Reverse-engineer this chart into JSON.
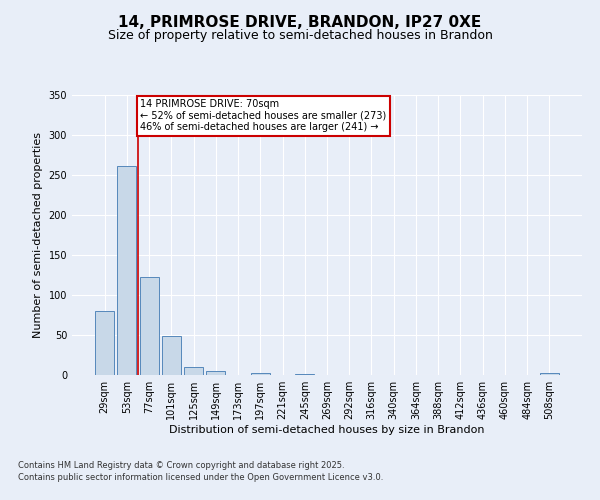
{
  "title_line1": "14, PRIMROSE DRIVE, BRANDON, IP27 0XE",
  "title_line2": "Size of property relative to semi-detached houses in Brandon",
  "xlabel": "Distribution of semi-detached houses by size in Brandon",
  "ylabel": "Number of semi-detached properties",
  "categories": [
    "29sqm",
    "53sqm",
    "77sqm",
    "101sqm",
    "125sqm",
    "149sqm",
    "173sqm",
    "197sqm",
    "221sqm",
    "245sqm",
    "269sqm",
    "292sqm",
    "316sqm",
    "340sqm",
    "364sqm",
    "388sqm",
    "412sqm",
    "436sqm",
    "460sqm",
    "484sqm",
    "508sqm"
  ],
  "values": [
    80,
    261,
    122,
    49,
    10,
    5,
    0,
    3,
    0,
    1,
    0,
    0,
    0,
    0,
    0,
    0,
    0,
    0,
    0,
    0,
    3
  ],
  "bar_color": "#c8d8e8",
  "bar_edge_color": "#5588bb",
  "ylim": [
    0,
    350
  ],
  "yticks": [
    0,
    50,
    100,
    150,
    200,
    250,
    300,
    350
  ],
  "red_line_x": 1.5,
  "annotation_title": "14 PRIMROSE DRIVE: 70sqm",
  "annotation_line2": "← 52% of semi-detached houses are smaller (273)",
  "annotation_line3": "46% of semi-detached houses are larger (241) →",
  "annotation_box_color": "#ffffff",
  "annotation_box_edge": "#cc0000",
  "red_line_color": "#cc0000",
  "bg_color": "#e8eef8",
  "plot_bg_color": "#e8eef8",
  "footer_line1": "Contains HM Land Registry data © Crown copyright and database right 2025.",
  "footer_line2": "Contains public sector information licensed under the Open Government Licence v3.0.",
  "grid_color": "#ffffff",
  "title_fontsize": 11,
  "subtitle_fontsize": 9,
  "ylabel_fontsize": 8,
  "xlabel_fontsize": 8,
  "tick_fontsize": 7,
  "footer_fontsize": 6
}
